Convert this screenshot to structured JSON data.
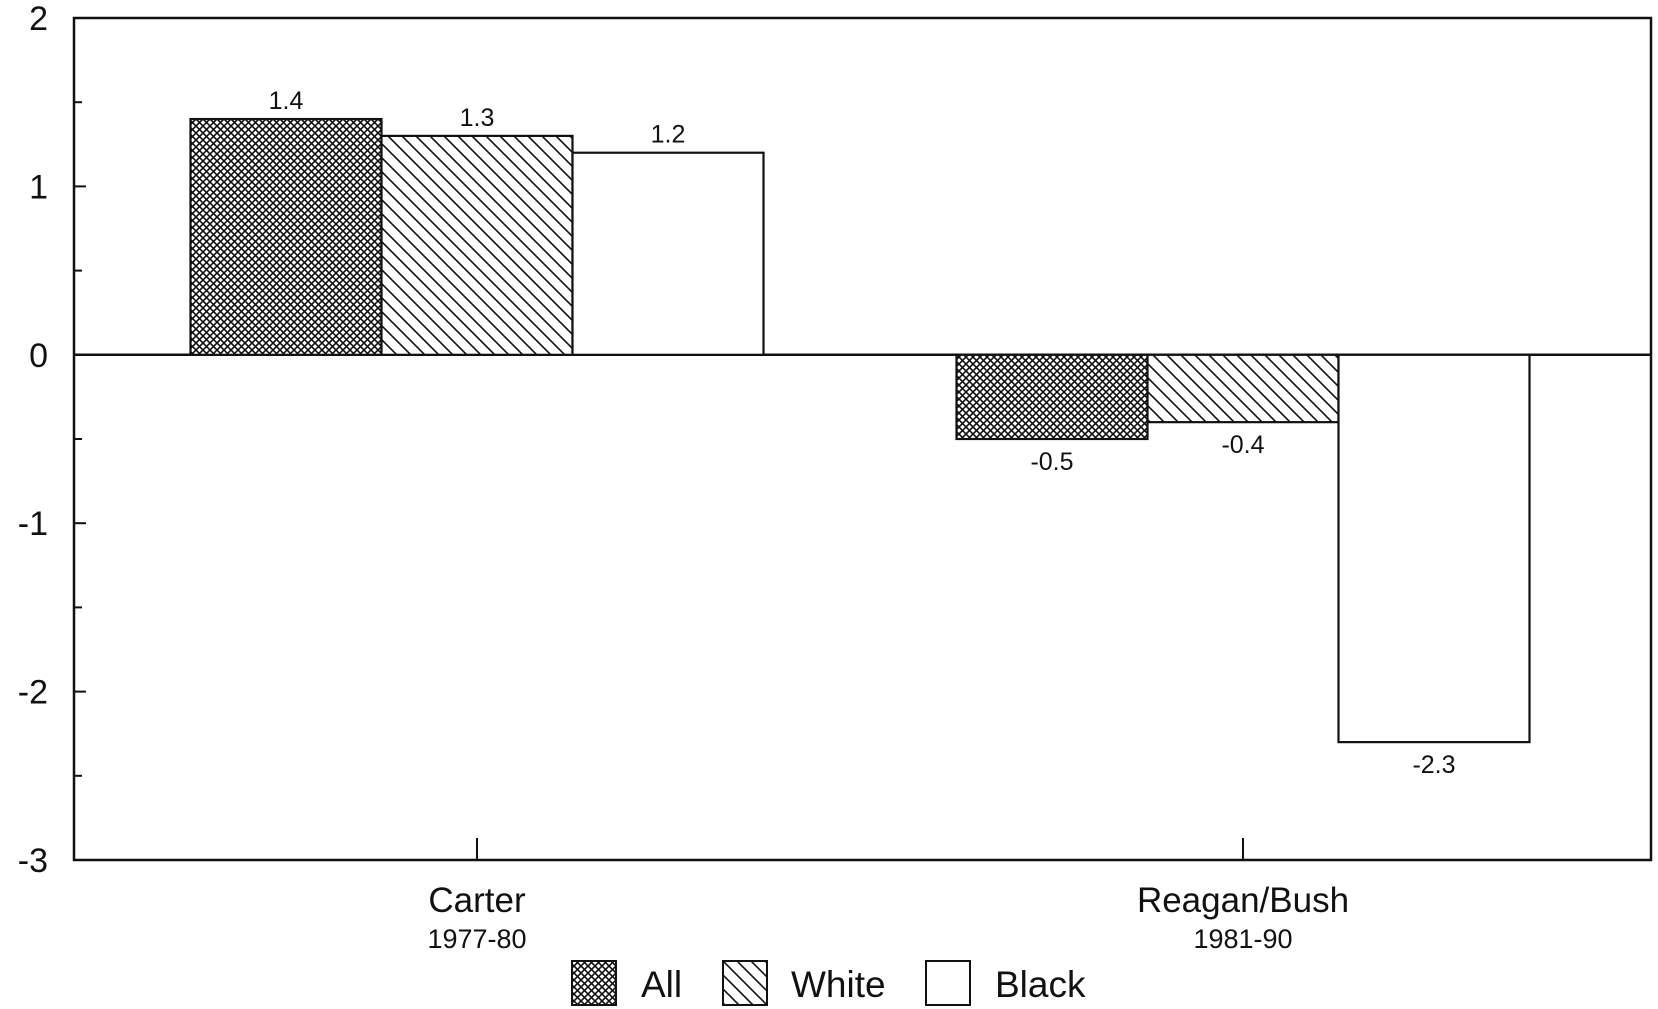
{
  "chart_data": {
    "type": "bar",
    "categories": [
      "Carter",
      "Reagan/Bush"
    ],
    "category_periods": [
      "1977-80",
      "1981-90"
    ],
    "series": [
      {
        "name": "All",
        "values": [
          1.4,
          -0.5
        ],
        "pattern": "crosshatch"
      },
      {
        "name": "White",
        "values": [
          1.3,
          -0.4
        ],
        "pattern": "diagonal"
      },
      {
        "name": "Black",
        "values": [
          1.2,
          -2.3
        ],
        "pattern": "none"
      }
    ],
    "data_labels": [
      [
        "1.4",
        "-0.5"
      ],
      [
        "1.3",
        "-0.4"
      ],
      [
        "1.2",
        "-2.3"
      ]
    ],
    "ylim": [
      -3,
      2
    ],
    "yticks": [
      2,
      1,
      0,
      -1,
      -2,
      -3
    ],
    "ytick_labels": [
      "2",
      "1",
      "0",
      "-1",
      "-2",
      "-3"
    ],
    "title": "",
    "xlabel": "",
    "ylabel": "",
    "legend_position": "bottom",
    "grid": false,
    "colors": {
      "stroke": "#111111",
      "fill": "#ffffff"
    }
  }
}
